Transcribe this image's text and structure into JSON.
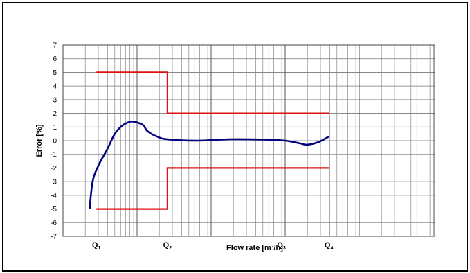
{
  "chart_data": {
    "type": "line",
    "title": "",
    "xlabel": "Flow rate [m³/h]",
    "ylabel": "Error [%]",
    "x_scale": "log",
    "ylim": [
      -7,
      7
    ],
    "y_ticks": [
      "7",
      "6",
      "5",
      "4",
      "3",
      "2",
      "1",
      "0",
      "-1",
      "-2",
      "-3",
      "-4",
      "-5",
      "-6",
      "-7"
    ],
    "grid": true,
    "x_markers": [
      {
        "name": "Q",
        "sub": "1",
        "x": 0.45
      },
      {
        "name": "Q",
        "sub": "2",
        "x": 1.41
      },
      {
        "name": "Q",
        "sub": "3",
        "x": 2.95
      },
      {
        "name": "Q",
        "sub": "4",
        "x": 3.59
      }
    ],
    "limits": {
      "upper": [
        [
          0.45,
          5
        ],
        [
          1.41,
          5
        ],
        [
          1.41,
          2
        ],
        [
          3.59,
          2
        ]
      ],
      "lower": [
        [
          0.45,
          -5
        ],
        [
          1.41,
          -5
        ],
        [
          1.41,
          -2
        ],
        [
          3.59,
          -2
        ]
      ],
      "color": "#e01010"
    },
    "series": [
      {
        "color": "#000080",
        "points": [
          [
            0.36,
            -5.0
          ],
          [
            0.4,
            -3.0
          ],
          [
            0.48,
            -1.8
          ],
          [
            0.6,
            -0.6
          ],
          [
            0.7,
            0.5
          ],
          [
            0.8,
            1.1
          ],
          [
            0.92,
            1.4
          ],
          [
            1.02,
            1.3
          ],
          [
            1.09,
            1.1
          ],
          [
            1.14,
            0.7
          ],
          [
            1.27,
            0.3
          ],
          [
            1.41,
            0.1
          ],
          [
            1.8,
            0.0
          ],
          [
            2.25,
            0.1
          ],
          [
            2.7,
            0.08
          ],
          [
            3.0,
            0.0
          ],
          [
            3.2,
            -0.2
          ],
          [
            3.3,
            -0.3
          ],
          [
            3.45,
            -0.1
          ],
          [
            3.59,
            0.3
          ]
        ]
      }
    ]
  }
}
